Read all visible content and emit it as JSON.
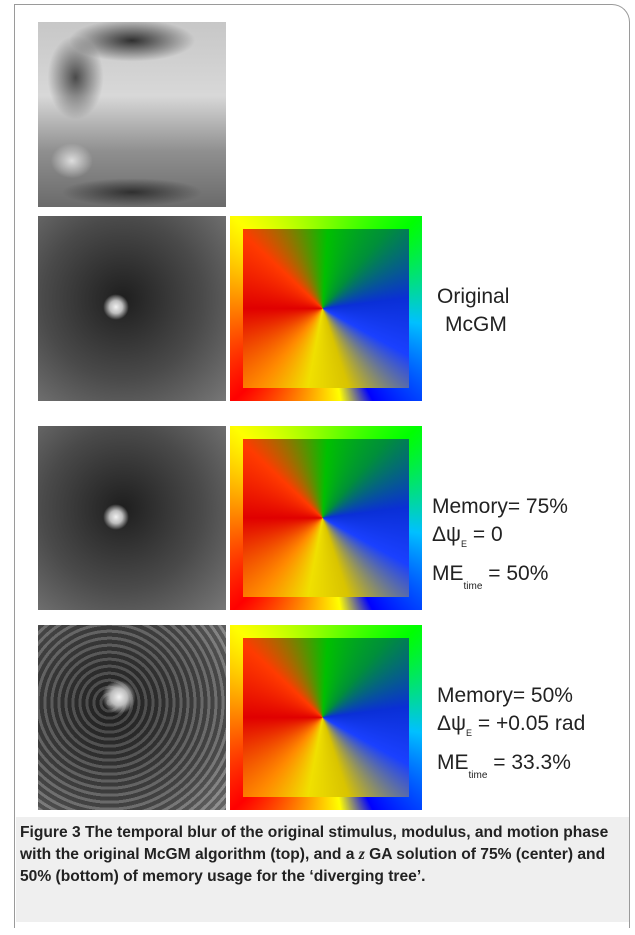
{
  "rows": [
    {
      "label_lines": [
        "Original",
        "McGM"
      ]
    },
    {
      "memory": "Memory= 75%",
      "dpsi_prefix": "Δψ",
      "dpsi_sub": "E",
      "dpsi_value": " = 0",
      "me_prefix": "ME",
      "me_sub": "time",
      "me_value": " = 50%"
    },
    {
      "memory": "Memory= 50%",
      "dpsi_prefix": "Δψ",
      "dpsi_sub": "E",
      "dpsi_value": " = +0.05 rad",
      "me_prefix": "ME",
      "me_sub": "time",
      "me_value": " = 33.3%"
    }
  ],
  "caption": {
    "label": "Figure 3",
    "text_part1": " The temporal blur of the original stimulus, modulus, and motion phase with the original McGM algorithm (top), and a ",
    "italic_z": "z",
    "text_part2": " GA solution of 75% (center) and 50% (bottom) of memory usage for the ‘diverging tree’."
  }
}
